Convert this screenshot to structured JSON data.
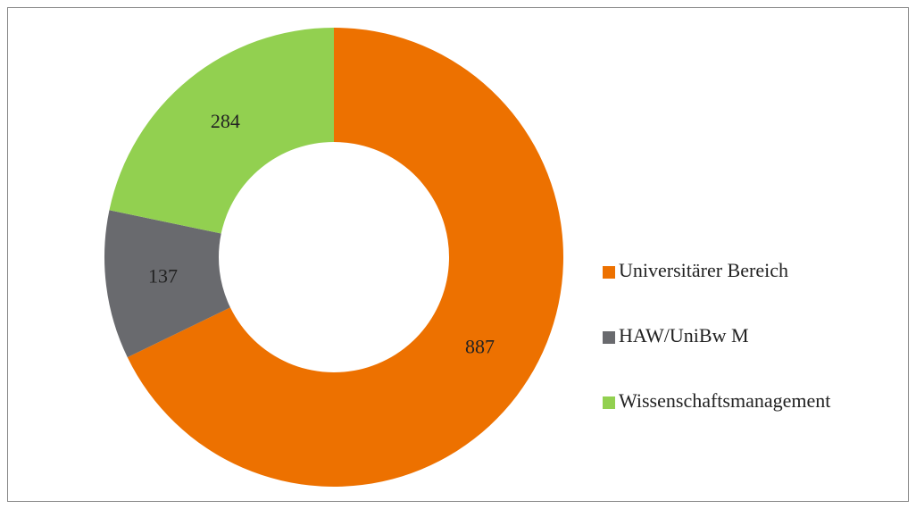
{
  "chart_data": {
    "type": "donut",
    "categories": [
      "Universitärer Bereich",
      "HAW/UniBw M",
      "Wissenschaftsmanagement"
    ],
    "values": [
      887,
      137,
      284
    ],
    "colors": [
      "#ed7100",
      "#696a6e",
      "#92d050"
    ],
    "legend": "right"
  }
}
